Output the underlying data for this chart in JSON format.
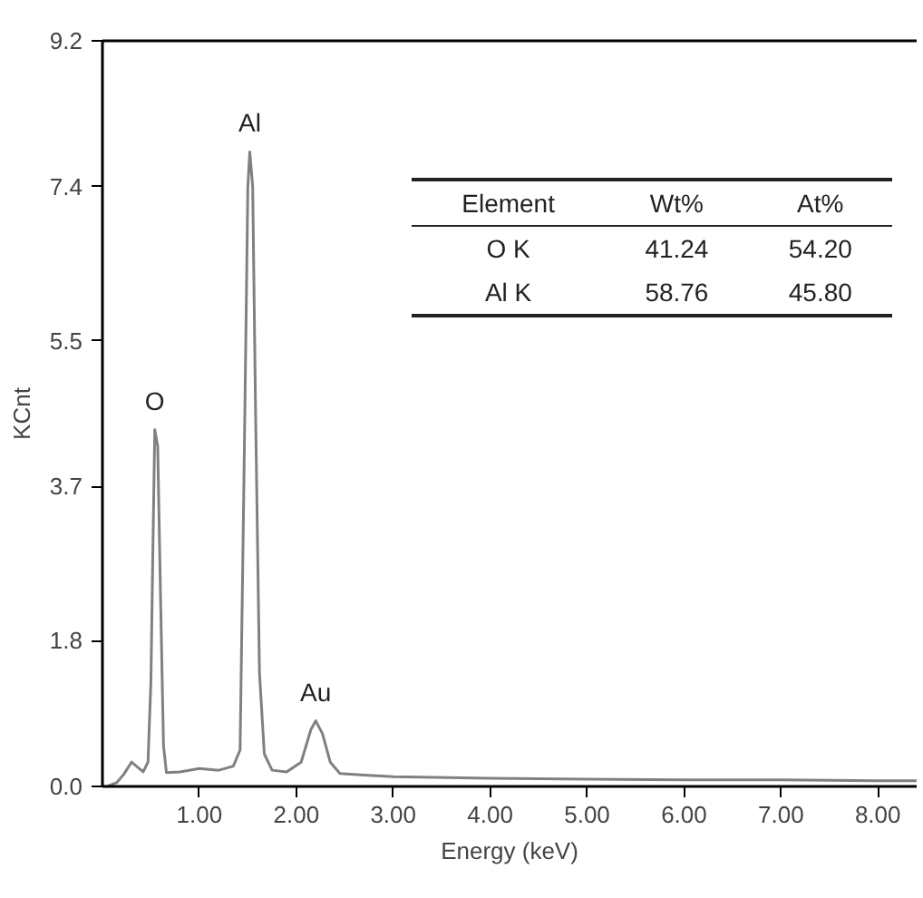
{
  "chart_data": {
    "type": "line",
    "xlabel": "Energy (keV)",
    "ylabel": "KCnt",
    "x": [
      0.05,
      0.15,
      0.22,
      0.3,
      0.35,
      0.42,
      0.47,
      0.5,
      0.52,
      0.54,
      0.57,
      0.6,
      0.63,
      0.66,
      0.8,
      1.0,
      1.2,
      1.35,
      1.42,
      1.46,
      1.5,
      1.52,
      1.55,
      1.58,
      1.62,
      1.67,
      1.75,
      1.9,
      2.05,
      2.15,
      2.2,
      2.27,
      2.35,
      2.45,
      2.7,
      3.0,
      4.0,
      5.0,
      6.0,
      7.0,
      8.0,
      8.4
    ],
    "series": [
      {
        "color": "#808080",
        "values": [
          0.0,
          0.05,
          0.15,
          0.3,
          0.25,
          0.18,
          0.3,
          1.3,
          2.9,
          4.4,
          4.2,
          2.3,
          0.5,
          0.17,
          0.18,
          0.22,
          0.2,
          0.25,
          0.45,
          3.8,
          7.4,
          7.83,
          7.4,
          4.6,
          1.4,
          0.4,
          0.2,
          0.18,
          0.3,
          0.7,
          0.81,
          0.65,
          0.3,
          0.16,
          0.14,
          0.12,
          0.1,
          0.09,
          0.08,
          0.08,
          0.07,
          0.07
        ]
      }
    ],
    "xlim": [
      0,
      8.4
    ],
    "ylim": [
      0,
      9.2
    ],
    "xticks": [
      {
        "value": 1,
        "label": "1.00"
      },
      {
        "value": 2,
        "label": "2.00"
      },
      {
        "value": 3,
        "label": "3.00"
      },
      {
        "value": 4,
        "label": "4.00"
      },
      {
        "value": 5,
        "label": "5.00"
      },
      {
        "value": 6,
        "label": "6.00"
      },
      {
        "value": 7,
        "label": "7.00"
      },
      {
        "value": 8,
        "label": "8.00"
      }
    ],
    "yticks": [
      {
        "value": 0,
        "label": "0.0"
      },
      1.8,
      3.7,
      5.5,
      7.4,
      9.2
    ],
    "grid": false,
    "marker": "none",
    "line_style": "solid",
    "annotations": [
      {
        "text": "O",
        "x": 0.54,
        "y": 4.4
      },
      {
        "text": "Al",
        "x": 1.52,
        "y": 7.83
      },
      {
        "text": "Au",
        "x": 2.2,
        "y": 0.81
      },
      "Element",
      "Wt%",
      "At%",
      "O K",
      "41.24",
      "54.20",
      "Al K",
      "58.76",
      "45.80"
    ]
  }
}
